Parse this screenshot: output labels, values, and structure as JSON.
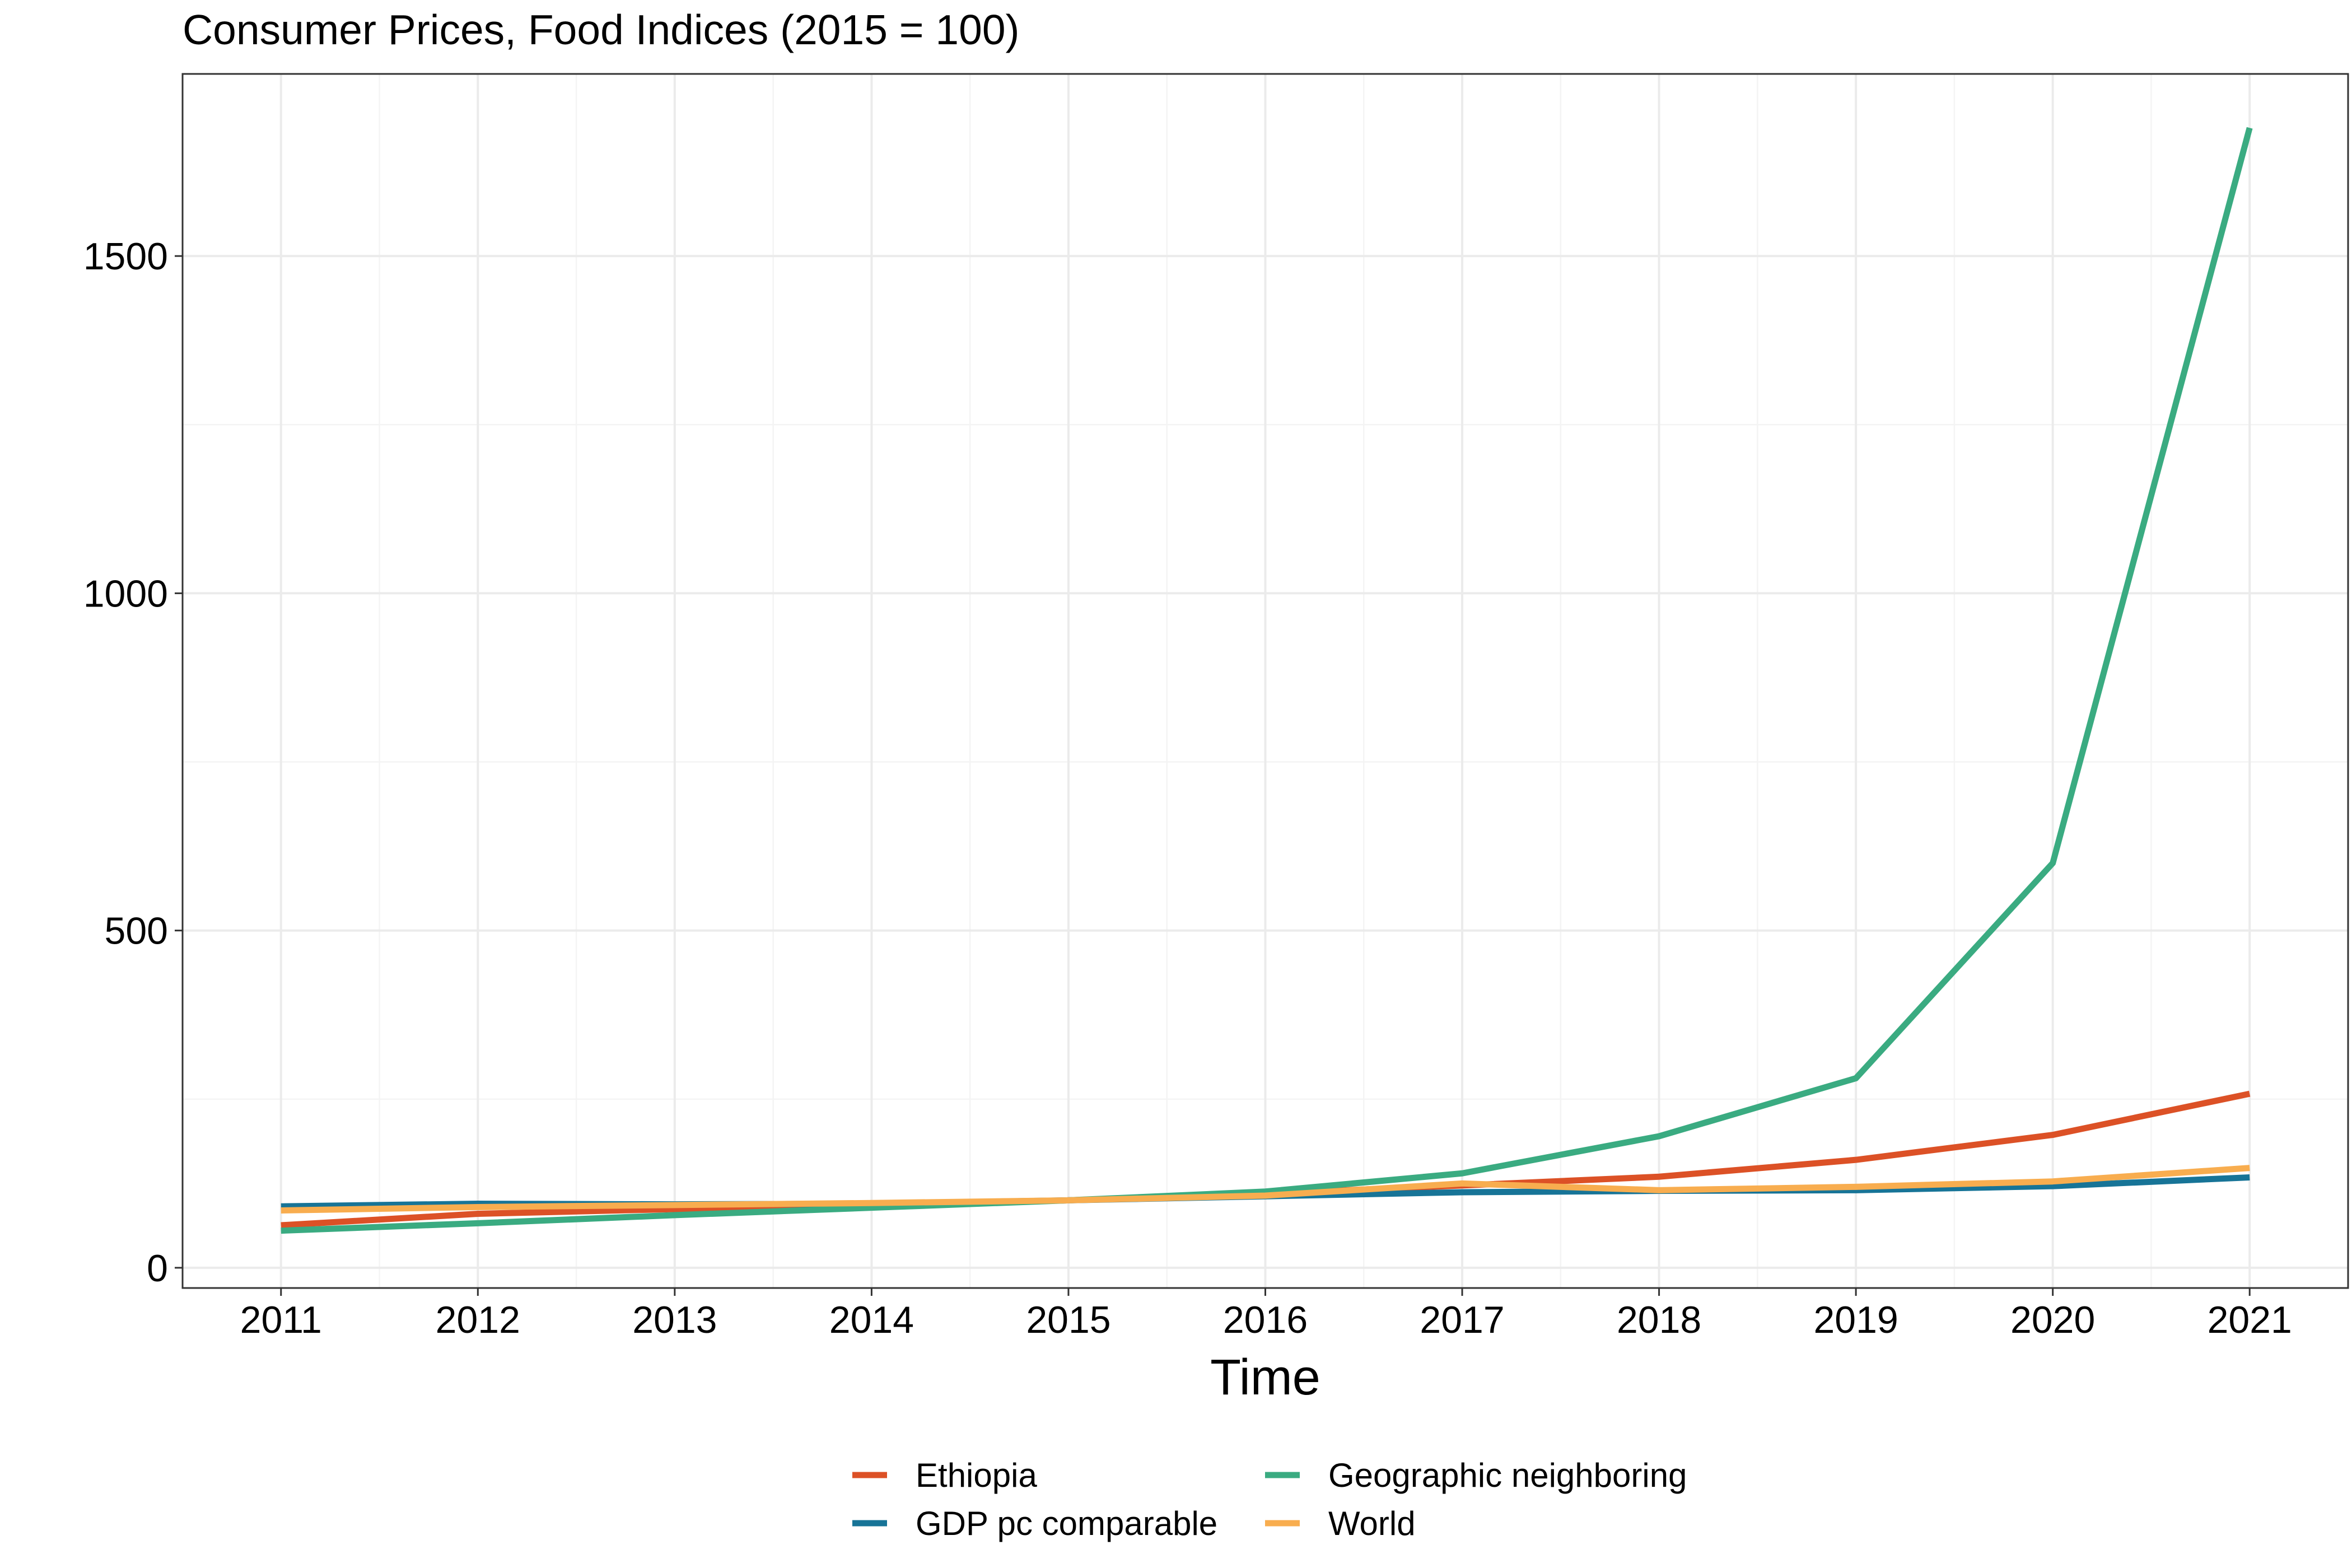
{
  "chart_data": {
    "type": "line",
    "title": "Consumer Prices, Food Indices (2015 = 100)",
    "xlabel": "Time",
    "ylabel": "",
    "x": [
      2011,
      2012,
      2013,
      2014,
      2015,
      2016,
      2017,
      2018,
      2019,
      2020,
      2021
    ],
    "x_tick_labels": [
      "2011",
      "2012",
      "2013",
      "2014",
      "2015",
      "2016",
      "2017",
      "2018",
      "2019",
      "2020",
      "2021"
    ],
    "xlim": [
      2010.5,
      2021.5
    ],
    "ylim": [
      -30,
      1770
    ],
    "y_ticks": [
      0,
      500,
      1000,
      1500
    ],
    "y_tick_labels": [
      "0",
      "500",
      "1000",
      "1500"
    ],
    "grid": true,
    "legend_position": "bottom",
    "series": [
      {
        "name": "Ethiopia",
        "color": "#DC5126",
        "values": [
          63,
          80,
          87,
          93,
          100,
          110,
          122,
          135,
          160,
          197,
          258
        ]
      },
      {
        "name": "GDP pc comparable",
        "color": "#177497",
        "values": [
          91,
          95,
          94,
          95,
          100,
          106,
          112,
          114,
          115,
          121,
          134
        ]
      },
      {
        "name": "Geographic neighboring",
        "color": "#3AAB81",
        "values": [
          55,
          66,
          78,
          89,
          100,
          113,
          140,
          195,
          281,
          600,
          1690
        ]
      },
      {
        "name": "World",
        "color": "#F8AD4F",
        "values": [
          85,
          90,
          93,
          96,
          100,
          107,
          125,
          115,
          120,
          128,
          148
        ]
      }
    ]
  }
}
